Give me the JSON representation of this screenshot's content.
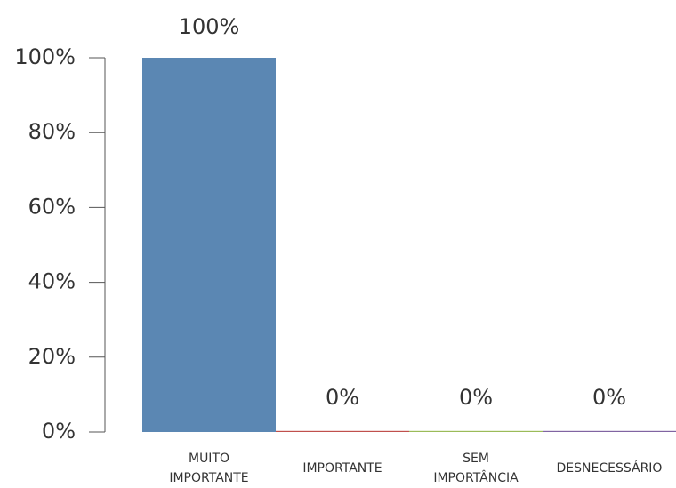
{
  "chart_data": {
    "type": "bar",
    "title": "",
    "xlabel": "",
    "ylabel": "",
    "ylim": [
      0,
      100
    ],
    "grid": false,
    "legend": "none",
    "y_ticks": [
      {
        "value": 0,
        "label": "0%"
      },
      {
        "value": 20,
        "label": "20%"
      },
      {
        "value": 40,
        "label": "40%"
      },
      {
        "value": 60,
        "label": "60%"
      },
      {
        "value": 80,
        "label": "80%"
      },
      {
        "value": 100,
        "label": "100%"
      }
    ],
    "categories": [
      {
        "lines": [
          "MUITO",
          "IMPORTANTE"
        ]
      },
      {
        "lines": [
          "IMPORTANTE"
        ]
      },
      {
        "lines": [
          "SEM",
          "IMPORTÂNCIA"
        ]
      },
      {
        "lines": [
          "DESNECESSÁRIO"
        ]
      }
    ],
    "values": [
      100,
      0,
      0,
      0
    ],
    "data_labels": [
      "100%",
      "0%",
      "0%",
      "0%"
    ],
    "colors": [
      "#5b87b3",
      "#c0504d",
      "#9bbb59",
      "#8064a2"
    ]
  }
}
